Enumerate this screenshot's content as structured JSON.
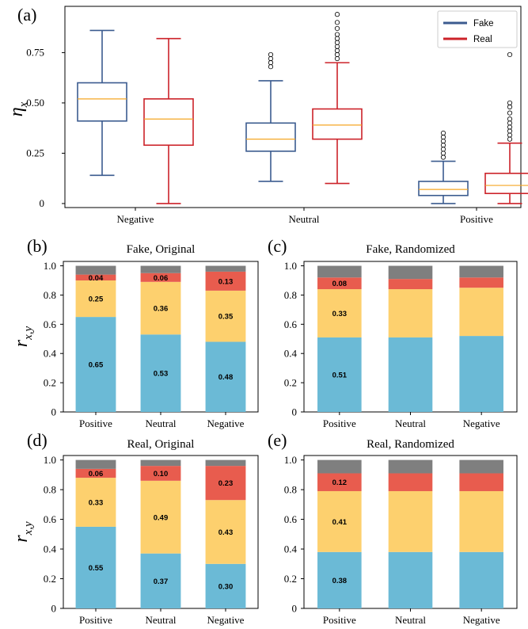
{
  "chart_data": [
    {
      "panel": "(a)",
      "type": "box",
      "ylabel": "η",
      "ylabel_sub": "x",
      "categories": [
        "Negative",
        "Neutral",
        "Positive"
      ],
      "yticks": [
        0,
        0.25,
        0.5,
        0.75
      ],
      "ytick_labels": [
        "0",
        "0.25",
        "0.50",
        "0.75"
      ],
      "ylim": [
        -0.02,
        0.98
      ],
      "legend": {
        "position": "top-right"
      },
      "series": [
        {
          "name": "Fake",
          "color": "#3b5b8f",
          "boxes": [
            {
              "whislo": 0.14,
              "q1": 0.41,
              "med": 0.52,
              "q3": 0.6,
              "whishi": 0.86,
              "fliers": []
            },
            {
              "whislo": 0.11,
              "q1": 0.26,
              "med": 0.32,
              "q3": 0.4,
              "whishi": 0.61,
              "fliers": [
                0.68,
                0.7,
                0.72,
                0.74
              ]
            },
            {
              "whislo": 0.0,
              "q1": 0.04,
              "med": 0.07,
              "q3": 0.11,
              "whishi": 0.21,
              "fliers": [
                0.23,
                0.25,
                0.27,
                0.29,
                0.31,
                0.33,
                0.35
              ]
            }
          ]
        },
        {
          "name": "Real",
          "color": "#cc2229",
          "boxes": [
            {
              "whislo": 0.0,
              "q1": 0.29,
              "med": 0.42,
              "q3": 0.52,
              "whishi": 0.82,
              "fliers": []
            },
            {
              "whislo": 0.1,
              "q1": 0.32,
              "med": 0.39,
              "q3": 0.47,
              "whishi": 0.7,
              "fliers": [
                0.72,
                0.74,
                0.76,
                0.78,
                0.8,
                0.82,
                0.84,
                0.87,
                0.9,
                0.94
              ]
            },
            {
              "whislo": 0.0,
              "q1": 0.05,
              "med": 0.09,
              "q3": 0.15,
              "whishi": 0.3,
              "fliers": [
                0.32,
                0.34,
                0.36,
                0.38,
                0.4,
                0.42,
                0.45,
                0.48,
                0.5,
                0.74
              ]
            }
          ]
        }
      ],
      "median_color": "#f5a623"
    },
    {
      "panel": "(b)",
      "title": "Fake, Original",
      "type": "bar",
      "stacked": true,
      "ylabel": "r",
      "ylabel_sub": "x,y",
      "categories": [
        "Positive",
        "Neutral",
        "Negative"
      ],
      "ylim": [
        0,
        1.03
      ],
      "segments": [
        {
          "color": "#6bbad6",
          "values": [
            0.65,
            0.53,
            0.48
          ],
          "labels": [
            "0.65",
            "0.53",
            "0.48"
          ]
        },
        {
          "color": "#fdd06e",
          "values": [
            0.25,
            0.36,
            0.35
          ],
          "labels": [
            "0.25",
            "0.36",
            "0.35"
          ]
        },
        {
          "color": "#e85c4e",
          "values": [
            0.04,
            0.06,
            0.13
          ],
          "labels": [
            "0.04",
            "0.06",
            "0.13"
          ]
        },
        {
          "color": "#7f7f7f",
          "values": [
            0.06,
            0.05,
            0.04
          ],
          "labels": [
            "",
            "",
            ""
          ]
        }
      ]
    },
    {
      "panel": "(c)",
      "title": "Fake, Randomized",
      "type": "bar",
      "stacked": true,
      "categories": [
        "Positive",
        "Neutral",
        "Negative"
      ],
      "ylim": [
        0,
        1.03
      ],
      "segments": [
        {
          "color": "#6bbad6",
          "values": [
            0.51,
            0.51,
            0.52
          ],
          "labels": [
            "0.51",
            "",
            ""
          ]
        },
        {
          "color": "#fdd06e",
          "values": [
            0.33,
            0.33,
            0.33
          ],
          "labels": [
            "0.33",
            "",
            ""
          ]
        },
        {
          "color": "#e85c4e",
          "values": [
            0.08,
            0.07,
            0.07
          ],
          "labels": [
            "0.08",
            "",
            ""
          ]
        },
        {
          "color": "#7f7f7f",
          "values": [
            0.08,
            0.09,
            0.08
          ],
          "labels": [
            "",
            "",
            ""
          ]
        }
      ]
    },
    {
      "panel": "(d)",
      "title": "Real, Original",
      "type": "bar",
      "stacked": true,
      "ylabel": "r",
      "ylabel_sub": "x,y",
      "categories": [
        "Positive",
        "Neutral",
        "Negative"
      ],
      "ylim": [
        0,
        1.03
      ],
      "segments": [
        {
          "color": "#6bbad6",
          "values": [
            0.55,
            0.37,
            0.3
          ],
          "labels": [
            "0.55",
            "0.37",
            "0.30"
          ]
        },
        {
          "color": "#fdd06e",
          "values": [
            0.33,
            0.49,
            0.43
          ],
          "labels": [
            "0.33",
            "0.49",
            "0.43"
          ]
        },
        {
          "color": "#e85c4e",
          "values": [
            0.06,
            0.1,
            0.23
          ],
          "labels": [
            "0.06",
            "0.10",
            "0.23"
          ]
        },
        {
          "color": "#7f7f7f",
          "values": [
            0.06,
            0.04,
            0.04
          ],
          "labels": [
            "",
            "",
            ""
          ]
        }
      ]
    },
    {
      "panel": "(e)",
      "title": "Real, Randomized",
      "type": "bar",
      "stacked": true,
      "categories": [
        "Positive",
        "Neutral",
        "Negative"
      ],
      "ylim": [
        0,
        1.03
      ],
      "segments": [
        {
          "color": "#6bbad6",
          "values": [
            0.38,
            0.38,
            0.38
          ],
          "labels": [
            "0.38",
            "",
            ""
          ]
        },
        {
          "color": "#fdd06e",
          "values": [
            0.41,
            0.41,
            0.41
          ],
          "labels": [
            "0.41",
            "",
            ""
          ]
        },
        {
          "color": "#e85c4e",
          "values": [
            0.12,
            0.12,
            0.12
          ],
          "labels": [
            "0.12",
            "",
            ""
          ]
        },
        {
          "color": "#7f7f7f",
          "values": [
            0.09,
            0.09,
            0.09
          ],
          "labels": [
            "",
            "",
            ""
          ]
        }
      ]
    }
  ],
  "bar_yticks": [
    0,
    0.2,
    0.4,
    0.6,
    0.8,
    1.0
  ],
  "bar_ytick_labels": [
    "0",
    "0.2",
    "0.4",
    "0.6",
    "0.8",
    "1.0"
  ]
}
